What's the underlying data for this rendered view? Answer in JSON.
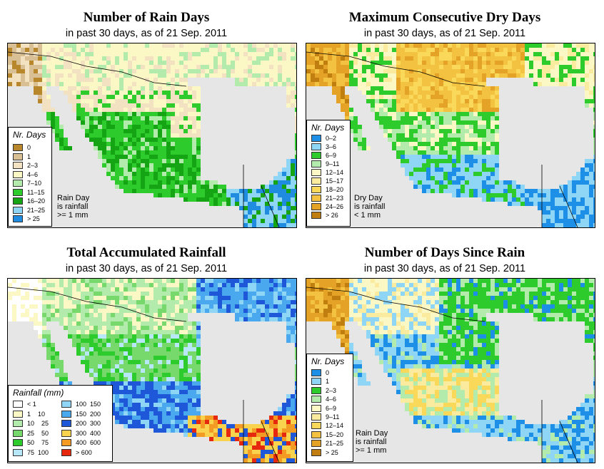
{
  "panels": [
    {
      "id": "rain-days",
      "title": "Number of Rain Days",
      "subtitle": "in past 30 days, as of  21 Sep. 2011",
      "legend_title": "Nr. Days",
      "legend_items": [
        {
          "label": "0",
          "color": "#b8862b"
        },
        {
          "label": "1",
          "color": "#d9bf94"
        },
        {
          "label": "2–3",
          "color": "#f2e2c2"
        },
        {
          "label": "4–6",
          "color": "#fbf8c5"
        },
        {
          "label": "7–10",
          "color": "#b2ebac"
        },
        {
          "label": "11–15",
          "color": "#2dcb2b"
        },
        {
          "label": "16–20",
          "color": "#14a414"
        },
        {
          "label": "21–25",
          "color": "#8fd6f6"
        },
        {
          "label": "> 25",
          "color": "#1f8ce0"
        }
      ],
      "note": "Rain Day\nis rainfall\n>= 1 mm"
    },
    {
      "id": "dry-days",
      "title": "Maximum Consecutive Dry Days",
      "subtitle": "in past 30 days, as of  21 Sep. 2011",
      "legend_title": "Nr. Days",
      "legend_items": [
        {
          "label": "0–2",
          "color": "#1e8fe6"
        },
        {
          "label": "3–6",
          "color": "#8fd6f6"
        },
        {
          "label": "6–9",
          "color": "#2dcb2b"
        },
        {
          "label": "9–11",
          "color": "#b2ebac"
        },
        {
          "label": "12–14",
          "color": "#fbf8c5"
        },
        {
          "label": "15–17",
          "color": "#fbeb9e"
        },
        {
          "label": "18–20",
          "color": "#fad95a"
        },
        {
          "label": "21–23",
          "color": "#f3c241"
        },
        {
          "label": "24–26",
          "color": "#e4a226"
        },
        {
          "label": "> 26",
          "color": "#c07e10"
        }
      ],
      "note": "Dry Day\nis rainfall\n< 1 mm"
    },
    {
      "id": "total-rainfall",
      "title": "Total Accumulated Rainfall",
      "subtitle": "in past 30 days, as of  21 Sep. 2011",
      "legend_title": "Rainfall (mm)",
      "legend_items": [
        {
          "label": "< 1",
          "color": "#ffffff"
        },
        {
          "label": "1    10",
          "color": "#fbf8c5"
        },
        {
          "label": "10    25",
          "color": "#b2ebac"
        },
        {
          "label": "25    50",
          "color": "#77d86c"
        },
        {
          "label": "50    75",
          "color": "#2dcb2b"
        },
        {
          "label": "75  100",
          "color": "#b7e7f8"
        },
        {
          "label": "100  150",
          "color": "#8fd6f6"
        },
        {
          "label": "150  200",
          "color": "#4aa8ef"
        },
        {
          "label": "200  300",
          "color": "#1e58d8"
        },
        {
          "label": "300  400",
          "color": "#f9d24e"
        },
        {
          "label": "400  600",
          "color": "#f39b22"
        },
        {
          "label": "> 600",
          "color": "#e5280e"
        }
      ],
      "note": ""
    },
    {
      "id": "days-since-rain",
      "title": "Number of Days Since Rain",
      "subtitle": "in past 30 days, as of  21 Sep. 2011",
      "legend_title": "Nr. Days",
      "legend_items": [
        {
          "label": "0",
          "color": "#1e8fe6"
        },
        {
          "label": "1",
          "color": "#8fd6f6"
        },
        {
          "label": "2–3",
          "color": "#2dcb2b"
        },
        {
          "label": "4–6",
          "color": "#b2ebac"
        },
        {
          "label": "6–9",
          "color": "#fbf8c5"
        },
        {
          "label": "9–11",
          "color": "#fbeb9e"
        },
        {
          "label": "12–14",
          "color": "#fad95a"
        },
        {
          "label": "15–20",
          "color": "#f3c241"
        },
        {
          "label": "21–25",
          "color": "#e4a226"
        },
        {
          "label": "> 25",
          "color": "#c07e10"
        }
      ],
      "note": "Rain Day\nis rainfall\n>= 1 mm"
    }
  ]
}
